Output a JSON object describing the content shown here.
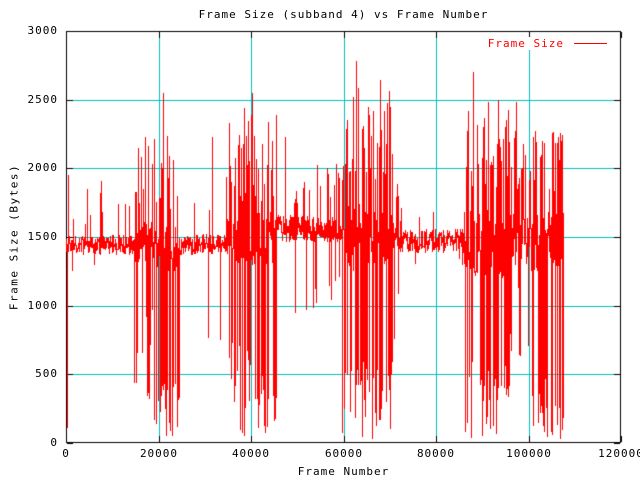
{
  "chart_data": {
    "type": "line",
    "title": "Frame Size (subband 4) vs Frame Number",
    "xlabel": "Frame Number",
    "ylabel": "Frame Size (Bytes)",
    "legend_label": "Frame Size",
    "legend_position": "top-right-inside",
    "grid": true,
    "x_range": [
      0,
      120000
    ],
    "y_range": [
      0,
      3000
    ],
    "x_ticks": {
      "values": [
        0,
        20000,
        40000,
        60000,
        80000,
        100000,
        120000
      ],
      "labels": [
        "0",
        "20000",
        "40000",
        "60000",
        "80000",
        "100000",
        "120000"
      ]
    },
    "y_ticks": {
      "values": [
        0,
        500,
        1000,
        1500,
        2000,
        2500,
        3000
      ],
      "labels": [
        "0",
        "500",
        "1000",
        "1500",
        "2000",
        "2500",
        "3000"
      ]
    },
    "colors": {
      "series": "#ff0000",
      "grid": "#00c0c0",
      "axis": "#000000",
      "background": "#ffffff",
      "legend_text": "#ff0000",
      "text": "#000000"
    },
    "seed": 1337,
    "series": [
      {
        "name": "Frame Size",
        "color": "#ff0000",
        "x_start": 0,
        "x_end": 107500,
        "representation": "dense noisy trace (~107k frames) summarized as envelope segments plus notable extreme points",
        "segments": [
          {
            "from": 0,
            "to": 14500,
            "band": [
              1375,
              1515
            ],
            "p_up": 0.12,
            "up": [
              1580,
              1950
            ],
            "p_down": 0.04,
            "down": [
              1150,
              1340
            ]
          },
          {
            "from": 14500,
            "to": 19000,
            "band": [
              1320,
              1620
            ],
            "p_up": 0.5,
            "up": [
              1700,
              2250
            ],
            "p_down": 0.35,
            "down": [
              150,
              1000
            ]
          },
          {
            "from": 19000,
            "to": 24500,
            "band": [
              1250,
              1600
            ],
            "p_up": 0.5,
            "up": [
              1700,
              2250
            ],
            "p_down": 0.65,
            "down": [
              40,
              450
            ]
          },
          {
            "from": 24500,
            "to": 34500,
            "band": [
              1375,
              1520
            ],
            "p_up": 0.16,
            "up": [
              1600,
              2000
            ],
            "p_down": 0.07,
            "down": [
              750,
              1250
            ]
          },
          {
            "from": 34500,
            "to": 40000,
            "band": [
              1300,
              1650
            ],
            "p_up": 0.5,
            "up": [
              1750,
              2350
            ],
            "p_down": 0.45,
            "down": [
              50,
              750
            ]
          },
          {
            "from": 40000,
            "to": 45500,
            "band": [
              1300,
              1680
            ],
            "p_up": 0.5,
            "up": [
              1750,
              2400
            ],
            "p_down": 0.55,
            "down": [
              30,
              500
            ]
          },
          {
            "from": 45500,
            "to": 59500,
            "band": [
              1470,
              1660
            ],
            "p_up": 0.2,
            "up": [
              1720,
              2050
            ],
            "p_down": 0.1,
            "down": [
              950,
              1320
            ]
          },
          {
            "from": 59500,
            "to": 70500,
            "band": [
              1250,
              1750
            ],
            "p_up": 0.55,
            "up": [
              1900,
              2600
            ],
            "p_down": 0.6,
            "down": [
              20,
              600
            ]
          },
          {
            "from": 70500,
            "to": 72500,
            "band": [
              1400,
              1650
            ],
            "p_up": 0.3,
            "up": [
              1700,
              1950
            ],
            "p_down": 0.2,
            "down": [
              700,
              1150
            ]
          },
          {
            "from": 72500,
            "to": 86000,
            "band": [
              1390,
              1560
            ],
            "p_up": 0.07,
            "up": [
              1620,
              1820
            ],
            "p_down": 0.04,
            "down": [
              1280,
              1400
            ]
          },
          {
            "from": 86000,
            "to": 96000,
            "band": [
              1200,
              1700
            ],
            "p_up": 0.55,
            "up": [
              1850,
              2500
            ],
            "p_down": 0.6,
            "down": [
              30,
              700
            ]
          },
          {
            "from": 96000,
            "to": 100500,
            "band": [
              1300,
              1700
            ],
            "p_up": 0.45,
            "up": [
              1780,
              2300
            ],
            "p_down": 0.25,
            "down": [
              600,
              1150
            ]
          },
          {
            "from": 100500,
            "to": 107500,
            "band": [
              1250,
              1680
            ],
            "p_up": 0.5,
            "up": [
              1800,
              2300
            ],
            "p_down": 0.55,
            "down": [
              30,
              500
            ]
          }
        ],
        "notable_points": [
          [
            300,
            120
          ],
          [
            500,
            1950
          ],
          [
            15500,
            2150
          ],
          [
            17000,
            2230
          ],
          [
            21000,
            2550
          ],
          [
            23000,
            60
          ],
          [
            31500,
            2230
          ],
          [
            38500,
            2440
          ],
          [
            40200,
            2550
          ],
          [
            43000,
            80
          ],
          [
            47300,
            2230
          ],
          [
            57300,
            1050
          ],
          [
            62700,
            2780
          ],
          [
            64000,
            50
          ],
          [
            65200,
            2450
          ],
          [
            66200,
            40
          ],
          [
            67900,
            2640
          ],
          [
            69800,
            2560
          ],
          [
            88000,
            2700
          ],
          [
            90000,
            60
          ],
          [
            93500,
            2500
          ],
          [
            97300,
            2480
          ],
          [
            101000,
            2230
          ],
          [
            104000,
            50
          ],
          [
            106300,
            2230
          ],
          [
            107200,
            100
          ]
        ]
      }
    ]
  }
}
